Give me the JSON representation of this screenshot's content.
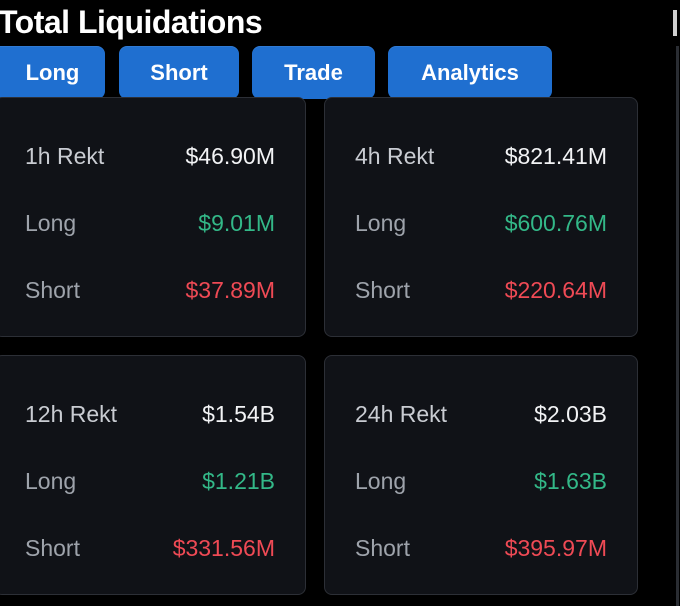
{
  "header": {
    "title": "Total Liquidations"
  },
  "tabs": [
    {
      "label": "Long"
    },
    {
      "label": "Short"
    },
    {
      "label": "Trade"
    },
    {
      "label": "Analytics"
    }
  ],
  "colors": {
    "tab_blue": "#1f6fd0",
    "long_green": "#33b888",
    "short_red": "#ef4a55",
    "card_bg": "#101217"
  },
  "cards": [
    {
      "period_label": "1h Rekt",
      "total": "$46.90M",
      "long_label": "Long",
      "long_value": "$9.01M",
      "short_label": "Short",
      "short_value": "$37.89M"
    },
    {
      "period_label": "4h Rekt",
      "total": "$821.41M",
      "long_label": "Long",
      "long_value": "$600.76M",
      "short_label": "Short",
      "short_value": "$220.64M"
    },
    {
      "period_label": "12h Rekt",
      "total": "$1.54B",
      "long_label": "Long",
      "long_value": "$1.21B",
      "short_label": "Short",
      "short_value": "$331.56M"
    },
    {
      "period_label": "24h Rekt",
      "total": "$2.03B",
      "long_label": "Long",
      "long_value": "$1.63B",
      "short_label": "Short",
      "short_value": "$395.97M"
    }
  ]
}
